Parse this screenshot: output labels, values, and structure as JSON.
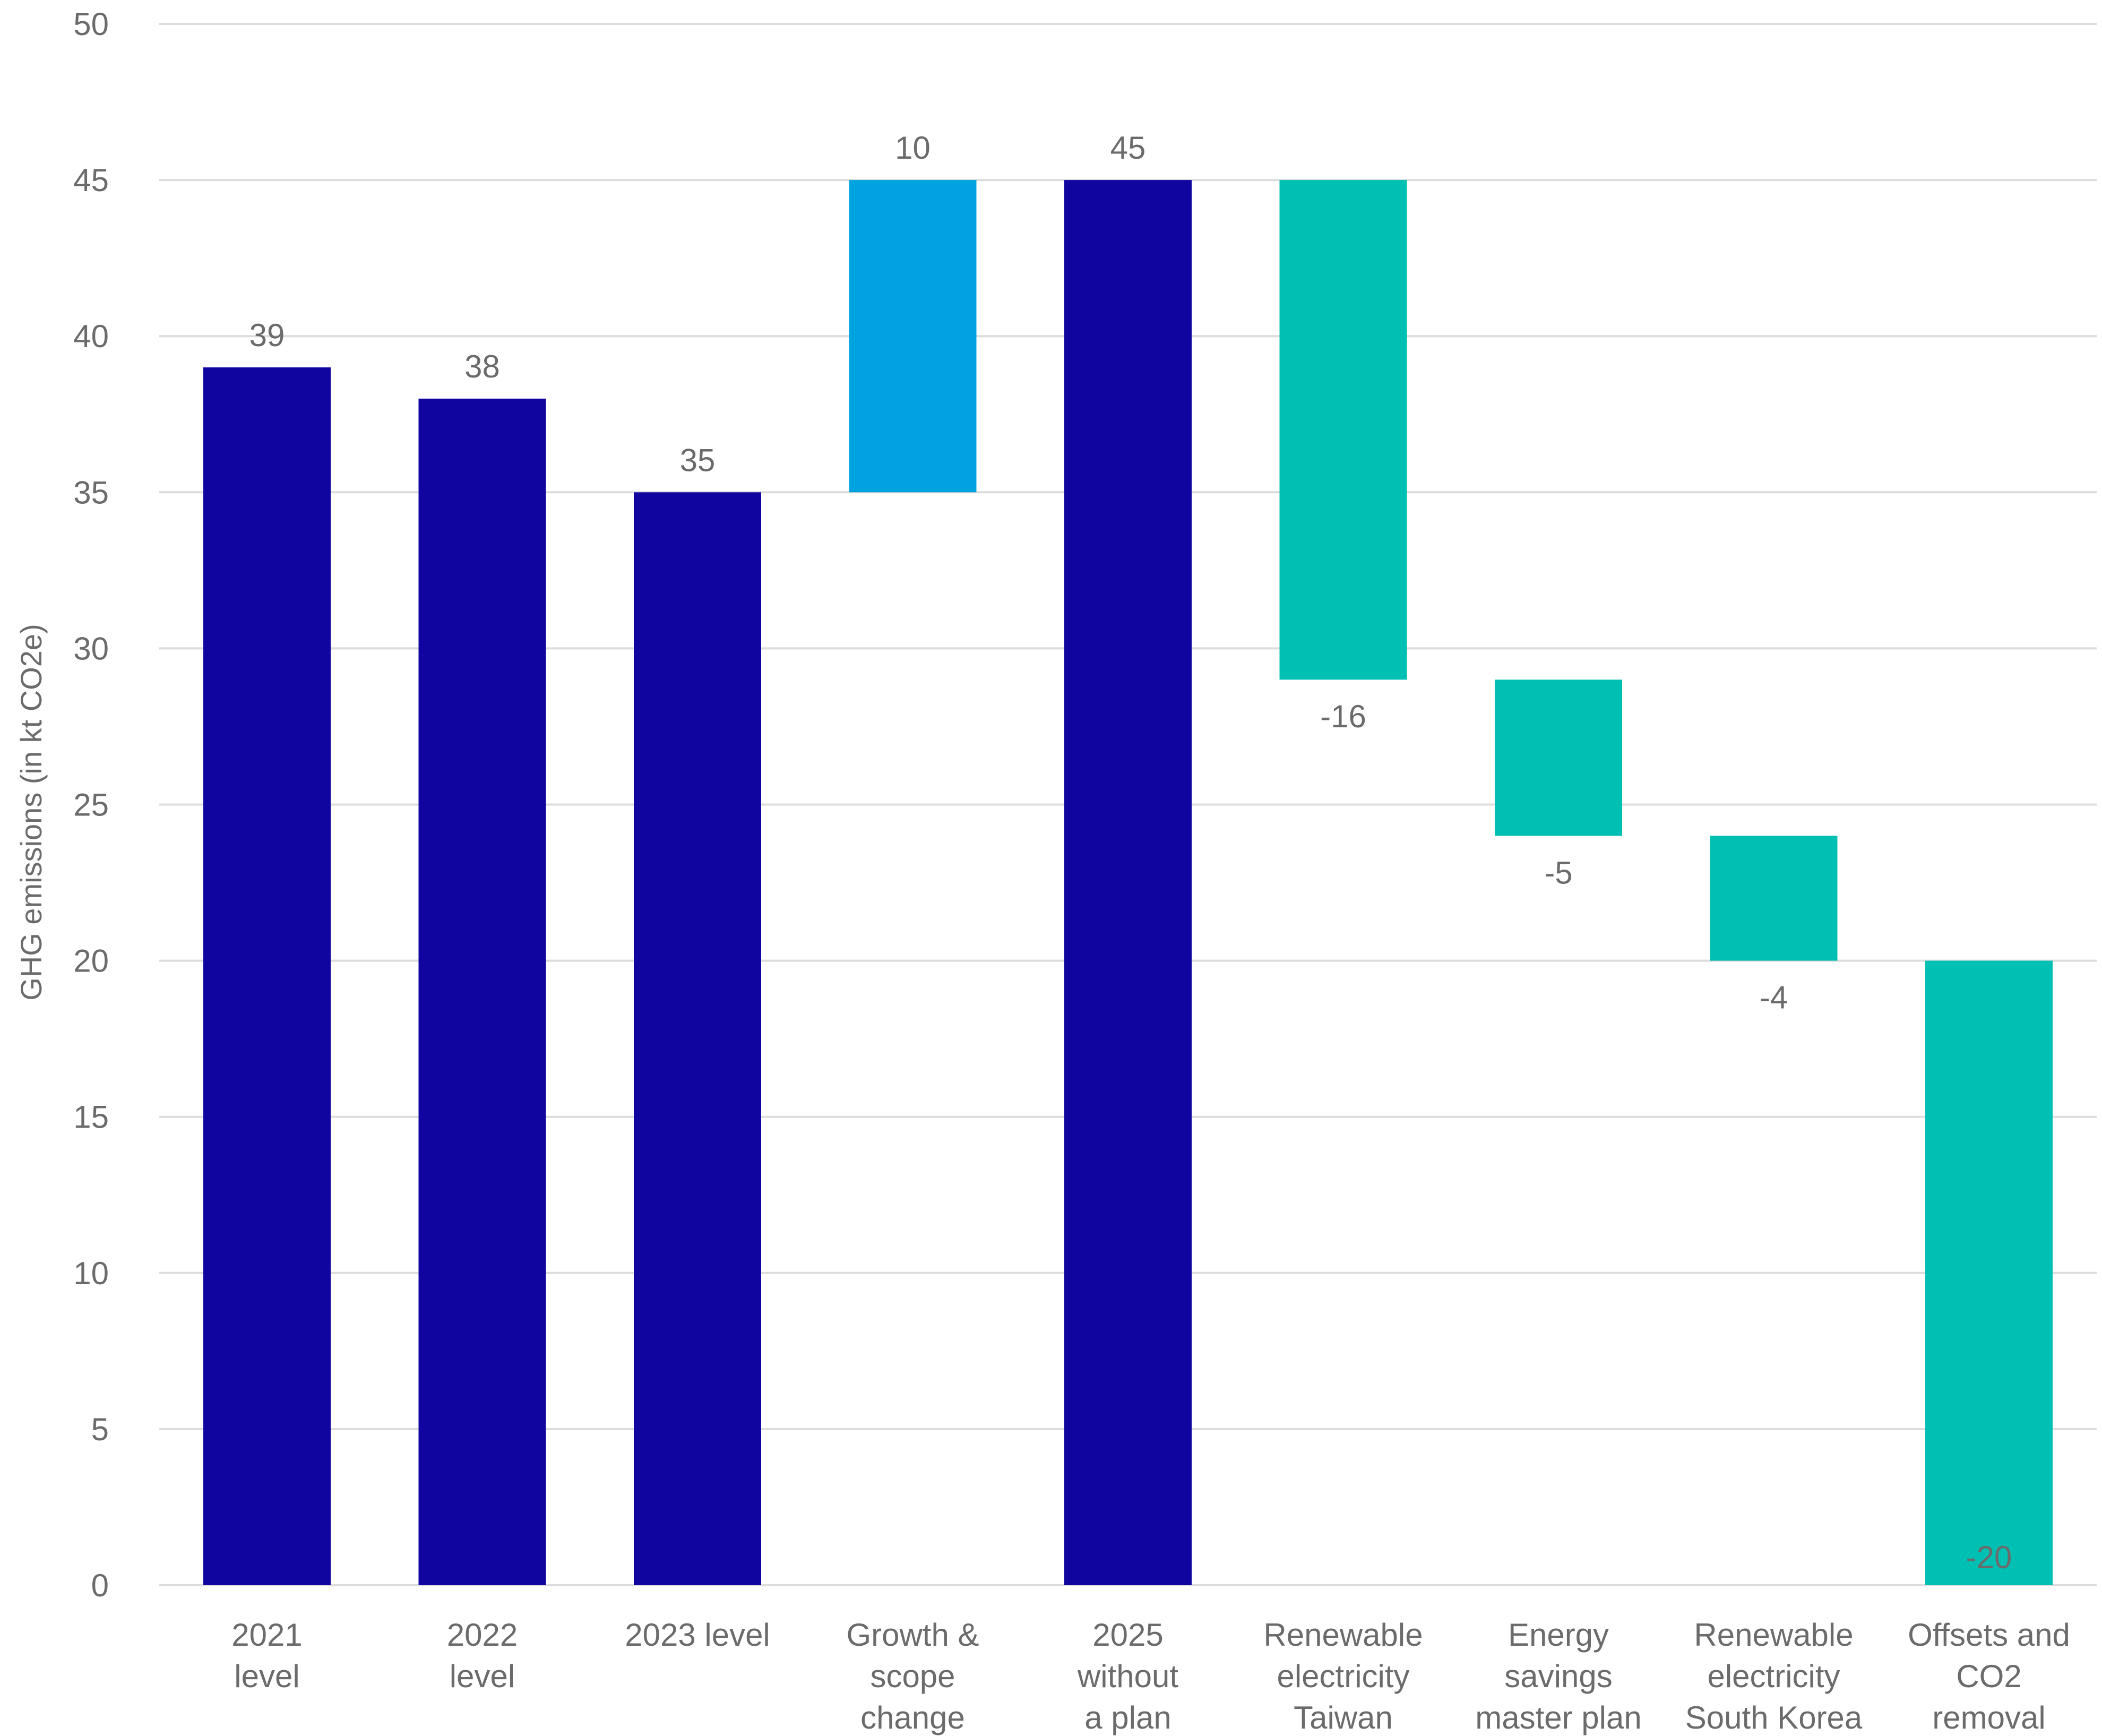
{
  "chart_data": {
    "type": "bar",
    "subtype": "waterfall",
    "title": "",
    "xlabel": "",
    "ylabel": "GHG emissions (in kt CO2e)",
    "ylim": [
      0,
      50
    ],
    "yticks": [
      0,
      5,
      10,
      15,
      20,
      25,
      30,
      35,
      40,
      45,
      50
    ],
    "grid": true,
    "colors": {
      "total": "#10069f",
      "increase": "#00a3e0",
      "decrease": "#00bfb3",
      "grid": "#dcdcdc",
      "text": "#6b6b6b"
    },
    "bars": [
      {
        "category": [
          "2021",
          "level"
        ],
        "kind": "total",
        "start": 0,
        "end": 39,
        "label": "39"
      },
      {
        "category": [
          "2022",
          "level"
        ],
        "kind": "total",
        "start": 0,
        "end": 38,
        "label": "38"
      },
      {
        "category": [
          "2023 level"
        ],
        "kind": "total",
        "start": 0,
        "end": 35,
        "label": "35"
      },
      {
        "category": [
          "Growth &",
          "scope",
          "change"
        ],
        "kind": "increase",
        "start": 35,
        "end": 45,
        "label": "10"
      },
      {
        "category": [
          "2025",
          "without",
          "a plan"
        ],
        "kind": "total",
        "start": 0,
        "end": 45,
        "label": "45"
      },
      {
        "category": [
          "Renewable",
          "electricity",
          "Taiwan"
        ],
        "kind": "decrease",
        "start": 45,
        "end": 29,
        "label": "-16"
      },
      {
        "category": [
          "Energy",
          "savings",
          "master plan"
        ],
        "kind": "decrease",
        "start": 29,
        "end": 24,
        "label": "-5"
      },
      {
        "category": [
          "Renewable",
          "electricity",
          "South Korea"
        ],
        "kind": "decrease",
        "start": 24,
        "end": 20,
        "label": "-4"
      },
      {
        "category": [
          "Offsets and",
          "CO2",
          "removal"
        ],
        "kind": "decrease",
        "start": 20,
        "end": 0,
        "label": "-20"
      }
    ]
  }
}
